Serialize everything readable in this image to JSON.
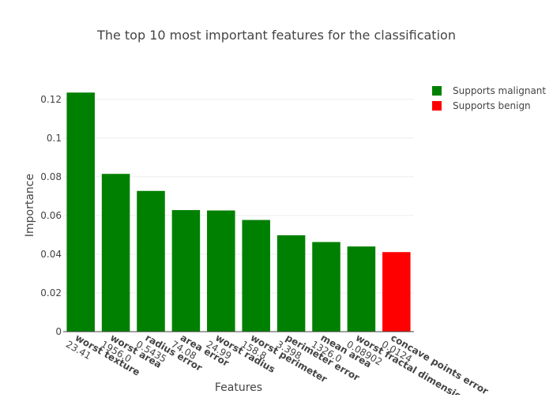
{
  "colors": {
    "malignant": "#008000",
    "benign": "#ff0000"
  },
  "chart_data": {
    "type": "bar",
    "title": "The top 10 most important features for the classification",
    "xlabel": "Features",
    "ylabel": "Importance",
    "ylim": [
      0,
      0.124
    ],
    "yticks": [
      "0",
      "0.02",
      "0.04",
      "0.06",
      "0.08",
      "0.1",
      "0.12"
    ],
    "ytick_values": [
      0,
      0.02,
      0.04,
      0.06,
      0.08,
      0.1,
      0.12
    ],
    "grid": true,
    "legend_position": "top-right",
    "categories": [
      {
        "name": "worst texture",
        "value": "23.41"
      },
      {
        "name": "worst area",
        "value": "1956.0"
      },
      {
        "name": "radius error",
        "value": "0.5435"
      },
      {
        "name": "area error",
        "value": "74.08"
      },
      {
        "name": "worst radius",
        "value": "24.99"
      },
      {
        "name": "worst perimeter",
        "value": "158.8"
      },
      {
        "name": "perimeter error",
        "value": "3.398"
      },
      {
        "name": "mean area",
        "value": "1326.0"
      },
      {
        "name": "worst fractal dimension",
        "value": "0.08902"
      },
      {
        "name": "concave points error",
        "value": "0.0124"
      }
    ],
    "values": [
      0.1235,
      0.0815,
      0.0727,
      0.0628,
      0.0626,
      0.0577,
      0.0498,
      0.0463,
      0.044,
      0.0411
    ],
    "classes": [
      "malignant",
      "malignant",
      "malignant",
      "malignant",
      "malignant",
      "malignant",
      "malignant",
      "malignant",
      "malignant",
      "benign"
    ],
    "legend": [
      {
        "label": "Supports malignant",
        "color": "#008000"
      },
      {
        "label": "Supports benign",
        "color": "#ff0000"
      }
    ]
  }
}
